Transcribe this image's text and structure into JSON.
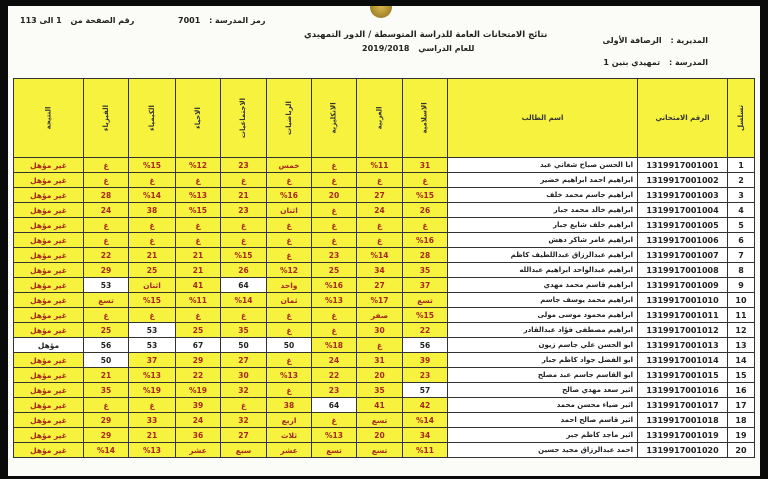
{
  "header": {
    "title": "نتائج الامتحانات العامة للدراسة المتوسطة / الدور التمهيدي",
    "year_label": "للعام الدراسي",
    "year": "2019/2018",
    "directorate_label": "المديرية :",
    "directorate": "الرصافة الأولى",
    "school_label": "المدرسة :",
    "school": "تمهيدي بنين 1",
    "school_code_label": "رمز المدرسة :",
    "school_code": "7001",
    "page_label": "رقم الصفحة من",
    "page": "1 الى 113"
  },
  "colors": {
    "cell_yellow": "#f6f23e",
    "grade_text": "#a8261a",
    "pass_cell": "#ffffff"
  },
  "columns": [
    "تسلسل",
    "الرقم الامتحاني",
    "اسم الطالب",
    "الاسلامية",
    "العربية",
    "الانكليزية",
    "الرياضيات",
    "الاجتماعيات",
    "الاحياء",
    "الكيمياء",
    "الفيزياء",
    "النتيجة"
  ],
  "rows": [
    {
      "seq": "1",
      "exam": "1319917001001",
      "name": "ابا الحسن صباح شغاتي عبد",
      "grades": [
        "31",
        "%11",
        "غ",
        "خمس",
        "23",
        "%12",
        "%15",
        "غ"
      ],
      "result": "غير مؤهل"
    },
    {
      "seq": "2",
      "exam": "1319917001002",
      "name": "ابراهيم احمد ابراهيم خضير",
      "grades": [
        "غ",
        "غ",
        "غ",
        "غ",
        "غ",
        "غ",
        "غ",
        "غ"
      ],
      "result": "غير مؤهل"
    },
    {
      "seq": "3",
      "exam": "1319917001003",
      "name": "ابراهيم جاسم محمد خلف",
      "grades": [
        "%15",
        "27",
        "20",
        "%16",
        "21",
        "%13",
        "%14",
        "28"
      ],
      "result": "غير مؤهل"
    },
    {
      "seq": "4",
      "exam": "1319917001004",
      "name": "ابراهيم خالد محمد جبار",
      "grades": [
        "26",
        "24",
        "غ",
        "اثنان",
        "23",
        "%15",
        "38",
        "24"
      ],
      "result": "غير مؤهل"
    },
    {
      "seq": "5",
      "exam": "1319917001005",
      "name": "ابراهيم خلف شايع جبار",
      "grades": [
        "غ",
        "غ",
        "غ",
        "غ",
        "غ",
        "غ",
        "غ",
        "غ"
      ],
      "result": "غير مؤهل"
    },
    {
      "seq": "6",
      "exam": "1319917001006",
      "name": "ابراهيم عامر شاكر دهش",
      "grades": [
        "%16",
        "غ",
        "غ",
        "غ",
        "غ",
        "غ",
        "غ",
        "غ"
      ],
      "result": "غير مؤهل"
    },
    {
      "seq": "7",
      "exam": "1319917001007",
      "name": "ابراهيم عبدالرزاق عبداللطيف كاظم",
      "grades": [
        "28",
        "%14",
        "23",
        "غ",
        "%15",
        "21",
        "21",
        "22"
      ],
      "result": "غير مؤهل"
    },
    {
      "seq": "8",
      "exam": "1319917001008",
      "name": "ابراهيم عبدالواحد ابراهيم عبدالله",
      "grades": [
        "35",
        "34",
        "25",
        "%12",
        "26",
        "21",
        "25",
        "29"
      ],
      "result": "غير مؤهل"
    },
    {
      "seq": "9",
      "exam": "1319917001009",
      "name": "ابراهيم قاسم محمد مهدي",
      "grades": [
        "37",
        "27",
        "%16",
        "واحد",
        "64",
        "41",
        "اثنان",
        "53"
      ],
      "result": "غير مؤهل"
    },
    {
      "seq": "10",
      "exam": "1319917001010",
      "name": "ابراهيم محمد يوسف جاسم",
      "grades": [
        "تسع",
        "%17",
        "%13",
        "ثمان",
        "%14",
        "%11",
        "%15",
        "تسع"
      ],
      "result": "غير مؤهل"
    },
    {
      "seq": "11",
      "exam": "1319917001011",
      "name": "ابراهيم محمود موسى مولى",
      "grades": [
        "%15",
        "صفر",
        "غ",
        "غ",
        "غ",
        "غ",
        "غ",
        "غ"
      ],
      "result": "غير مؤهل"
    },
    {
      "seq": "12",
      "exam": "1319917001012",
      "name": "ابراهيم مصطفى فؤاد عبدالقادر",
      "grades": [
        "22",
        "30",
        "غ",
        "غ",
        "35",
        "25",
        "53",
        "25"
      ],
      "result": "غير مؤهل"
    },
    {
      "seq": "13",
      "exam": "1319917001013",
      "name": "ابو الحسن علي جاسم زيون",
      "grades": [
        "56",
        "غ",
        "%18",
        "50",
        "50",
        "67",
        "53",
        "56"
      ],
      "result": "مؤهل"
    },
    {
      "seq": "14",
      "exam": "1319917001014",
      "name": "ابو الفضل جواد كاظم جبار",
      "grades": [
        "39",
        "31",
        "24",
        "غ",
        "27",
        "29",
        "37",
        "50"
      ],
      "result": "غير مؤهل"
    },
    {
      "seq": "15",
      "exam": "1319917001015",
      "name": "ابو القاسم جاسم عبد مصلح",
      "grades": [
        "23",
        "20",
        "22",
        "%13",
        "30",
        "22",
        "%13",
        "21"
      ],
      "result": "غير مؤهل"
    },
    {
      "seq": "16",
      "exam": "1319917001016",
      "name": "اثير سعد مهدي صالح",
      "grades": [
        "57",
        "35",
        "23",
        "غ",
        "32",
        "%19",
        "%19",
        "35"
      ],
      "result": "غير مؤهل"
    },
    {
      "seq": "17",
      "exam": "1319917001017",
      "name": "اثير ضياء محسن محمد",
      "grades": [
        "42",
        "41",
        "64",
        "38",
        "غ",
        "39",
        "غ",
        "غ"
      ],
      "result": "غير مؤهل"
    },
    {
      "seq": "18",
      "exam": "1319917001018",
      "name": "اثير قاسم صالح احمد",
      "grades": [
        "%14",
        "تسع",
        "غ",
        "اربع",
        "32",
        "24",
        "33",
        "29"
      ],
      "result": "غير مؤهل"
    },
    {
      "seq": "19",
      "exam": "1319917001019",
      "name": "اثير ماجد كاظم جبر",
      "grades": [
        "34",
        "20",
        "%13",
        "ثلاث",
        "27",
        "36",
        "21",
        "29"
      ],
      "result": "غير مؤهل"
    },
    {
      "seq": "20",
      "exam": "1319917001020",
      "name": "احمد عبدالرزاق مجيد حسين",
      "grades": [
        "%11",
        "تسع",
        "تسع",
        "عشر",
        "سبع",
        "عشر",
        "%13",
        "%14"
      ],
      "result": "غير مؤهل"
    }
  ]
}
